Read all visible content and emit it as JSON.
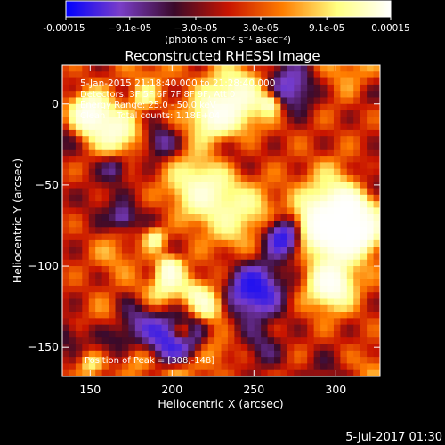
{
  "chart_data": {
    "type": "heatmap",
    "title": "Reconstructed RHESSI Image",
    "xlabel": "Heliocentric X (arcsec)",
    "ylabel": "Heliocentric Y (arcsec)",
    "xlim": [
      133,
      327
    ],
    "ylim": [
      -168,
      24
    ],
    "x_ticks": [
      150,
      200,
      250,
      300
    ],
    "y_ticks": [
      0,
      -50,
      -100,
      -150
    ],
    "colorbar": {
      "range": [
        -0.00015,
        0.00015
      ],
      "tick_values": [
        -0.00015,
        -9.1e-05,
        -3e-05,
        3e-05,
        9.1e-05,
        0.00015
      ],
      "tick_labels": [
        "-0.00015",
        "−9.1e-05",
        "−3.0e-05",
        "3.0e-05",
        "9.1e-05",
        "0.00015"
      ],
      "unit_label": "(photons cm⁻² s⁻¹ asec⁻²)"
    },
    "annotations": {
      "time_range": "5-Jan-2015 21:18:40.000 to 21:28:40.000",
      "detectors": "Detectors: 3F 5F 6F 7F 8F 9F, Att 0",
      "energy_range": "Energy Range: 25.0 - 50.0 keV",
      "algorithm": "Clean    Total counts: 1.18E+04",
      "peak": "Position of Peak = [308,-148]"
    },
    "peak_position": [
      308,
      -148
    ],
    "grid": false
  },
  "footer": {
    "timestamp": "5-Jul-2017 01:30"
  },
  "colors": {
    "colorbar_stops": [
      "#0000ff",
      "#7a3ec8",
      "#3a0a2a",
      "#c81400",
      "#ff7d00",
      "#ffff80",
      "#ffffff"
    ],
    "frame": "#ffffff",
    "background": "#000000"
  }
}
